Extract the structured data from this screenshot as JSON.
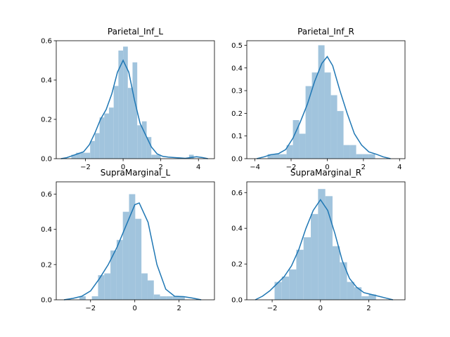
{
  "colors": {
    "bar": "#a1c4dd",
    "line": "#1f77b4"
  },
  "chart_data": [
    {
      "type": "bar",
      "title": "Parietal_Inf_L",
      "xlim": [
        -3.55,
        4.85
      ],
      "ylim": [
        0,
        0.6
      ],
      "xticks": [
        {
          "v": -2,
          "label": "−2"
        },
        {
          "v": 0,
          "label": "0"
        },
        {
          "v": 2,
          "label": "2"
        },
        {
          "v": 4,
          "label": "4"
        }
      ],
      "yticks": [
        {
          "v": 0,
          "label": "0.0"
        },
        {
          "v": 0.2,
          "label": "0.2"
        },
        {
          "v": 0.4,
          "label": "0.4"
        },
        {
          "v": 0.6,
          "label": "0.6"
        }
      ],
      "histogram": {
        "edges": [
          -2.75,
          -2.5,
          -2.25,
          -2.0,
          -1.75,
          -1.5,
          -1.25,
          -1.0,
          -0.75,
          -0.5,
          -0.25,
          0.0,
          0.25,
          0.5,
          0.75,
          1.0,
          1.25,
          1.5,
          1.75,
          2.0,
          2.25,
          2.5,
          2.75,
          3.0,
          3.25,
          3.5,
          3.75,
          4.0
        ],
        "values": [
          0.02,
          0.03,
          0.03,
          0.03,
          0.09,
          0.13,
          0.21,
          0.23,
          0.26,
          0.37,
          0.55,
          0.57,
          0.36,
          0.49,
          0.17,
          0.19,
          0.11,
          0.02,
          0.02,
          0.0,
          0.0,
          0.0,
          0.0,
          0.0,
          0.0,
          0.02,
          0.0
        ]
      },
      "kde": {
        "x": [
          -3.3,
          -3.0,
          -2.7,
          -2.4,
          -2.1,
          -1.8,
          -1.5,
          -1.2,
          -0.9,
          -0.6,
          -0.3,
          0.0,
          0.3,
          0.6,
          0.9,
          1.2,
          1.5,
          1.8,
          2.1,
          2.4,
          2.7,
          3.0,
          3.3,
          3.6,
          3.9,
          4.2,
          4.5
        ],
        "y": [
          0.0,
          0.005,
          0.015,
          0.025,
          0.035,
          0.07,
          0.13,
          0.2,
          0.25,
          0.33,
          0.44,
          0.5,
          0.44,
          0.3,
          0.18,
          0.12,
          0.06,
          0.025,
          0.012,
          0.008,
          0.006,
          0.004,
          0.002,
          0.006,
          0.01,
          0.006,
          0.0
        ]
      }
    },
    {
      "type": "bar",
      "title": "Parietal_Inf_R",
      "xlim": [
        -4.45,
        4.3
      ],
      "ylim": [
        0,
        0.52
      ],
      "xticks": [
        {
          "v": -4,
          "label": "−4"
        },
        {
          "v": -2,
          "label": "−2"
        },
        {
          "v": 0,
          "label": "0"
        },
        {
          "v": 2,
          "label": "2"
        },
        {
          "v": 4,
          "label": "4"
        }
      ],
      "yticks": [
        {
          "v": 0,
          "label": "0.0"
        },
        {
          "v": 0.1,
          "label": "0.1"
        },
        {
          "v": 0.2,
          "label": "0.2"
        },
        {
          "v": 0.3,
          "label": "0.3"
        },
        {
          "v": 0.4,
          "label": "0.4"
        },
        {
          "v": 0.5,
          "label": "0.5"
        }
      ],
      "histogram": {
        "edges": [
          -3.3,
          -2.95,
          -2.6,
          -2.25,
          -1.9,
          -1.55,
          -1.2,
          -0.85,
          -0.5,
          -0.15,
          0.2,
          0.55,
          0.9,
          1.25,
          1.6,
          1.95,
          2.3,
          2.65,
          3.0
        ],
        "values": [
          0.02,
          0.02,
          0.02,
          0.06,
          0.17,
          0.11,
          0.32,
          0.38,
          0.5,
          0.38,
          0.28,
          0.21,
          0.06,
          0.06,
          0.02,
          0.02,
          0.02,
          0.0
        ]
      },
      "kde": {
        "x": [
          -3.9,
          -3.5,
          -3.1,
          -2.7,
          -2.3,
          -1.9,
          -1.5,
          -1.1,
          -0.7,
          -0.3,
          0.0,
          0.3,
          0.7,
          1.1,
          1.5,
          1.9,
          2.3,
          2.7,
          3.1,
          3.5
        ],
        "y": [
          0.0,
          0.008,
          0.018,
          0.022,
          0.04,
          0.09,
          0.16,
          0.24,
          0.34,
          0.42,
          0.45,
          0.41,
          0.3,
          0.2,
          0.11,
          0.06,
          0.03,
          0.02,
          0.008,
          0.0
        ]
      }
    },
    {
      "type": "bar",
      "title": "SupraMarginal_L",
      "xlim": [
        -3.55,
        3.6
      ],
      "ylim": [
        0,
        0.67
      ],
      "xticks": [
        {
          "v": -2,
          "label": "−2"
        },
        {
          "v": 0,
          "label": "0"
        },
        {
          "v": 2,
          "label": "2"
        }
      ],
      "yticks": [
        {
          "v": 0,
          "label": "0.0"
        },
        {
          "v": 0.2,
          "label": "0.2"
        },
        {
          "v": 0.4,
          "label": "0.4"
        },
        {
          "v": 0.6,
          "label": "0.6"
        }
      ],
      "histogram": {
        "edges": [
          -2.5,
          -2.22,
          -1.94,
          -1.66,
          -1.38,
          -1.1,
          -0.82,
          -0.54,
          -0.26,
          0.02,
          0.3,
          0.58,
          0.86,
          1.14,
          1.42,
          1.7,
          1.98,
          2.26,
          2.54
        ],
        "values": [
          0.02,
          0.0,
          0.02,
          0.14,
          0.15,
          0.28,
          0.34,
          0.5,
          0.6,
          0.46,
          0.15,
          0.11,
          0.03,
          0.02,
          0.02,
          0.02,
          0.02,
          0.0
        ]
      },
      "kde": {
        "x": [
          -3.2,
          -2.8,
          -2.4,
          -2.0,
          -1.6,
          -1.2,
          -0.8,
          -0.4,
          0.0,
          0.2,
          0.6,
          1.0,
          1.4,
          1.8,
          2.2,
          2.6,
          3.0
        ],
        "y": [
          0.0,
          0.008,
          0.02,
          0.05,
          0.12,
          0.2,
          0.3,
          0.42,
          0.54,
          0.55,
          0.44,
          0.2,
          0.06,
          0.02,
          0.018,
          0.01,
          0.0
        ]
      }
    },
    {
      "type": "bar",
      "title": "SupraMarginal_R",
      "xlim": [
        -3.05,
        3.5
      ],
      "ylim": [
        0,
        0.66
      ],
      "xticks": [
        {
          "v": -2,
          "label": "−2"
        },
        {
          "v": 0,
          "label": "0"
        },
        {
          "v": 2,
          "label": "2"
        }
      ],
      "yticks": [
        {
          "v": 0,
          "label": "0.0"
        },
        {
          "v": 0.2,
          "label": "0.2"
        },
        {
          "v": 0.4,
          "label": "0.4"
        },
        {
          "v": 0.6,
          "label": "0.6"
        }
      ],
      "histogram": {
        "edges": [
          -1.9,
          -1.6,
          -1.3,
          -1.0,
          -0.7,
          -0.4,
          -0.1,
          0.2,
          0.5,
          0.8,
          1.1,
          1.4,
          1.7,
          2.0,
          2.3,
          2.6
        ],
        "values": [
          0.1,
          0.13,
          0.17,
          0.28,
          0.35,
          0.48,
          0.62,
          0.58,
          0.3,
          0.21,
          0.1,
          0.07,
          0.02,
          0.03,
          0.0
        ]
      },
      "kde": {
        "x": [
          -2.7,
          -2.4,
          -2.1,
          -1.8,
          -1.5,
          -1.2,
          -0.9,
          -0.6,
          -0.3,
          0.0,
          0.3,
          0.6,
          0.9,
          1.2,
          1.5,
          1.8,
          2.1,
          2.4,
          2.7,
          3.0
        ],
        "y": [
          0.0,
          0.02,
          0.05,
          0.09,
          0.13,
          0.19,
          0.28,
          0.4,
          0.5,
          0.56,
          0.5,
          0.37,
          0.22,
          0.12,
          0.07,
          0.04,
          0.03,
          0.02,
          0.01,
          0.0
        ]
      }
    }
  ]
}
